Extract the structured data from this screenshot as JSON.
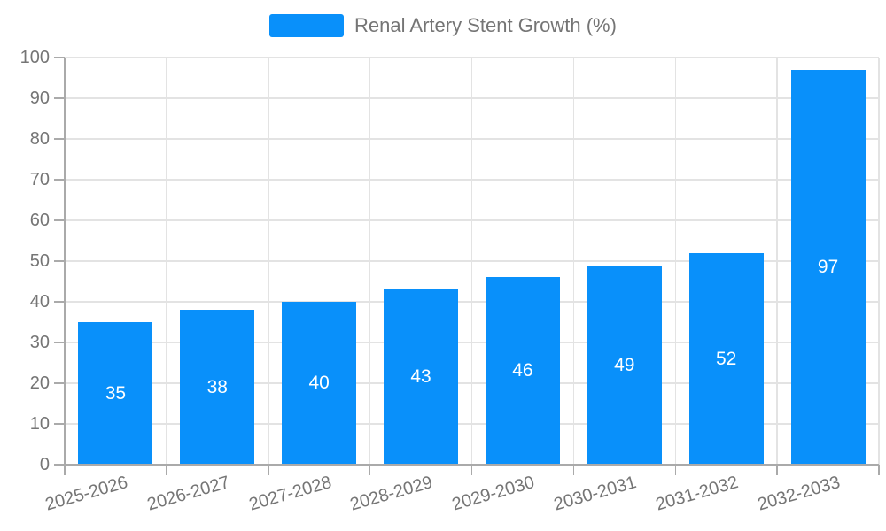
{
  "legend": {
    "label": "Renal Artery Stent Growth (%)"
  },
  "chart_data": {
    "type": "bar",
    "title": "Renal Artery Stent Growth (%)",
    "categories": [
      "2025-2026",
      "2026-2027",
      "2027-2028",
      "2028-2029",
      "2029-2030",
      "2030-2031",
      "2031-2032",
      "2032-2033"
    ],
    "values": [
      35,
      38,
      40,
      43,
      46,
      49,
      52,
      97
    ],
    "xlabel": "",
    "ylabel": "",
    "ylim": [
      0,
      100
    ],
    "ytick_step": 10,
    "grid": true,
    "legend_position": "top-center",
    "colors": {
      "bar": "#0990fa",
      "value_label": "#ffffff",
      "axis_line": "#aaaaaa",
      "grid_line": "#e3e3e3",
      "axis_text": "#757575"
    }
  }
}
